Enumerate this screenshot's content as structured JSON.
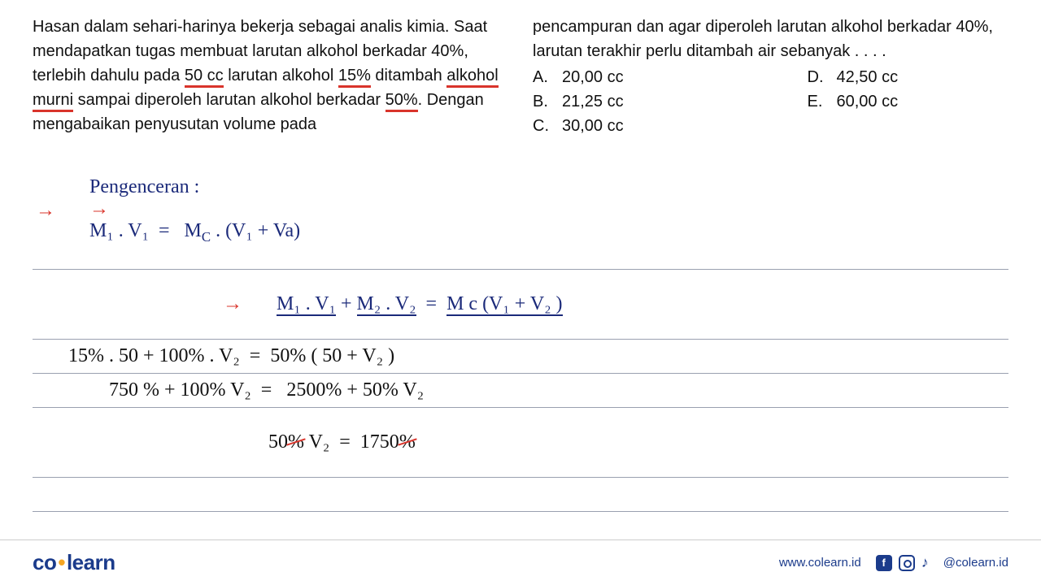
{
  "question": {
    "left_html": "Hasan dalam sehari-harinya bekerja sebagai analis kimia. Saat mendapatkan tugas membuat larutan alkohol berkadar 40%, terlebih dahulu pada <span class='underline-red'>50 cc</span> larutan alkohol <span class='underline-red'>15%</span> ditambah <span class='underline-red'>alkohol murni</span> sampai diperoleh larutan alkohol berkadar <span class='underline-red'>50%</span>. Dengan mengabaikan penyusutan volume pada",
    "right_intro": "pencampuran dan agar diperoleh larutan alkohol berkadar 40%, larutan terakhir perlu ditambah air sebanyak . . . .",
    "options": [
      {
        "letter": "A.",
        "text": "20,00 cc"
      },
      {
        "letter": "B.",
        "text": "21,25 cc"
      },
      {
        "letter": "C.",
        "text": "30,00 cc"
      },
      {
        "letter": "D.",
        "text": "42,50 cc"
      },
      {
        "letter": "E.",
        "text": "60,00 cc"
      }
    ]
  },
  "work": {
    "line1_prefix": "Pengenceran :",
    "line1_formula": "M₁ . V₁  =   M",
    "line1_sub_c": "C",
    "line1_rest": " . (V₁ + Va)",
    "line2_a": "M₁ . V₁",
    "line2_plus": " + ",
    "line2_b": "M₂ . V₂",
    "line2_eq": "  =  ",
    "line2_c": "M c",
    "line2_d": " (V₁ + V₂ )",
    "line3": "15% . 50 + 100% . V₂  =  50% ( 50 + V₂ )",
    "line4": "750 % + 100% V₂  =   2500% + 50% V₂",
    "line5_a": "50",
    "line5_pct1": "%",
    "line5_b": " V₂  =  1750",
    "line5_pct2": "%"
  },
  "footer": {
    "logo_co": "co",
    "logo_learn": "learn",
    "url": "www.colearn.id",
    "handle": "@colearn.id",
    "fb_glyph": "f"
  },
  "colors": {
    "red": "#d9342b",
    "blue_ink": "#1b2a7a",
    "brand_blue": "#1b3b8b",
    "rule": "#9aa0b0",
    "orange": "#f5a623"
  }
}
